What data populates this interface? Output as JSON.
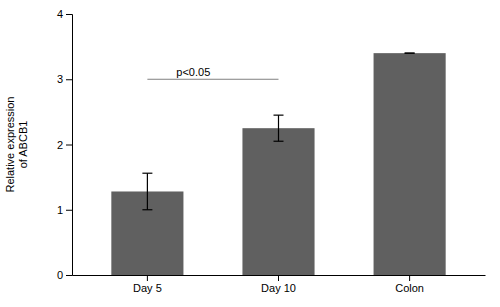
{
  "chart_data": {
    "type": "bar",
    "categories": [
      "Day 5",
      "Day 10",
      "Colon"
    ],
    "values": [
      1.28,
      2.25,
      3.4
    ],
    "errors": [
      0.28,
      0.2,
      0.0
    ],
    "color": "#606060",
    "ylabel": [
      "Relative expression",
      "of ABCB1"
    ],
    "ylim": [
      0,
      4
    ],
    "yticks": [
      0,
      1,
      2,
      3,
      4
    ],
    "grid": false,
    "annotations": [
      {
        "text": "p<0.05",
        "x1": "Day 5",
        "x2": "Day 10",
        "y": 3.0
      }
    ]
  }
}
